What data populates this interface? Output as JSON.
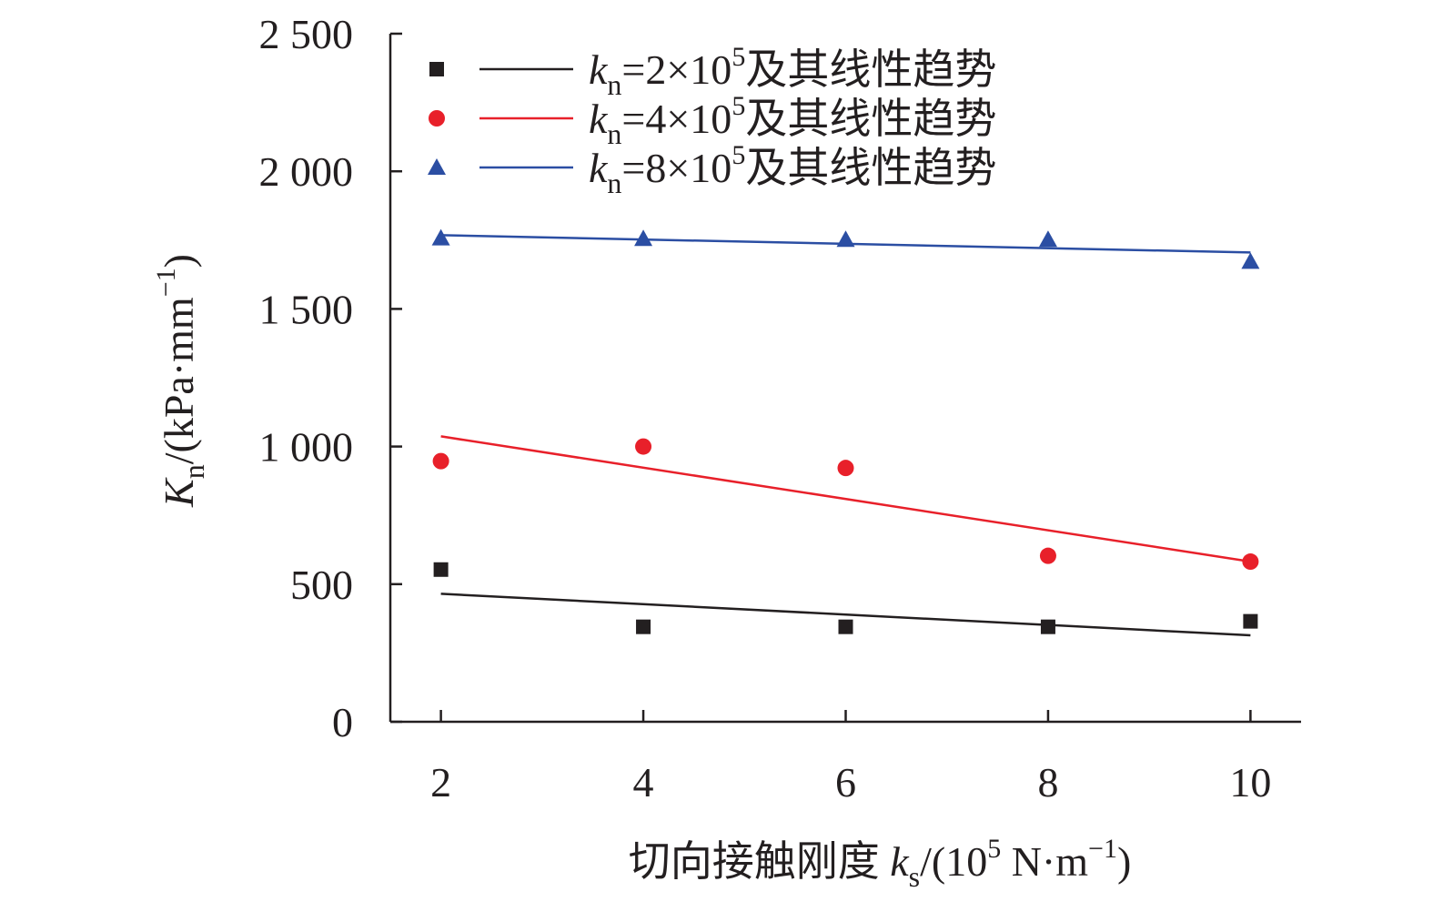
{
  "chart_data": {
    "type": "scatter",
    "x": [
      2,
      4,
      6,
      8,
      10
    ],
    "xlim": [
      1.5,
      10.5
    ],
    "ylim": [
      0,
      2500
    ],
    "xticks": [
      "2",
      "4",
      "6",
      "8",
      "10"
    ],
    "yticks": [
      "0",
      "500",
      "1 000",
      "1 500",
      "2 000",
      "2 500"
    ],
    "ytick_values": [
      0,
      500,
      1000,
      1500,
      2000,
      2500
    ],
    "ylabel": {
      "symbol": "K",
      "subscript": "n",
      "unit_prefix": "/(kPa·mm",
      "unit_exponent": "−1",
      "unit_suffix": ")"
    },
    "xlabel": {
      "prefix": "切向接触刚度 ",
      "symbol": "k",
      "subscript": "s",
      "unit_prefix": "/(10",
      "unit_exp1": "5",
      "unit_mid": " N·m",
      "unit_exp2": "−1",
      "unit_suffix": ")"
    },
    "grid": false,
    "legend_position": "top",
    "series": [
      {
        "name": "kn=2×10^5及其线性趋势",
        "legend": {
          "symbol": "k",
          "subscript": "n",
          "eq": "=2×10",
          "exponent": "5",
          "suffix": "及其线性趋势"
        },
        "marker": "square",
        "color": "#231f20",
        "values": [
          553,
          345,
          345,
          345,
          365
        ],
        "trend": [
          465,
          314
        ]
      },
      {
        "name": "kn=4×10^5及其线性趋势",
        "legend": {
          "symbol": "k",
          "subscript": "n",
          "eq": "=4×10",
          "exponent": "5",
          "suffix": "及其线性趋势"
        },
        "marker": "circle",
        "color": "#e8202a",
        "values": [
          947,
          1000,
          922,
          603,
          582
        ],
        "trend": [
          1037,
          582
        ]
      },
      {
        "name": "kn=8×10^5及其线性趋势",
        "legend": {
          "symbol": "k",
          "subscript": "n",
          "eq": "=8×10",
          "exponent": "5",
          "suffix": "及其线性趋势"
        },
        "marker": "triangle",
        "color": "#2b4ea3",
        "values": [
          1757,
          1755,
          1752,
          1752,
          1672
        ],
        "trend": [
          1768,
          1705
        ]
      }
    ]
  }
}
